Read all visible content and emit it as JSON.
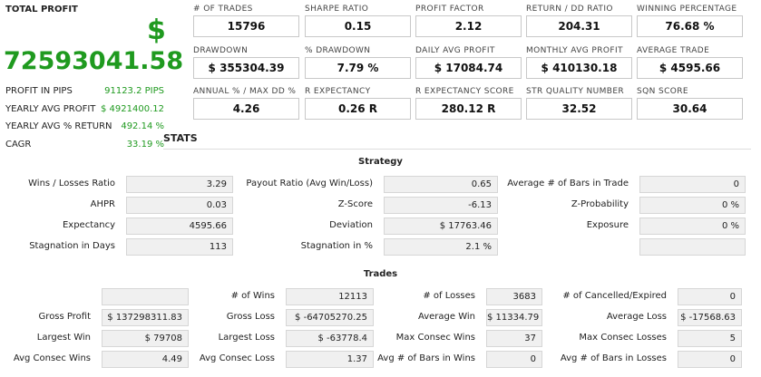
{
  "total_profit": {
    "label": "TOTAL PROFIT",
    "currency_symbol": "$",
    "value": "72593041.58",
    "rows": [
      {
        "label": "PROFIT IN PIPS",
        "value": "91123.2 PIPS"
      },
      {
        "label": "YEARLY AVG PROFIT",
        "value": "$ 4921400.12"
      },
      {
        "label": "YEARLY AVG % RETURN",
        "value": "492.14 %"
      },
      {
        "label": "CAGR",
        "value": "33.19 %"
      }
    ]
  },
  "metrics": [
    {
      "label": "# OF TRADES",
      "value": "15796"
    },
    {
      "label": "SHARPE RATIO",
      "value": "0.15"
    },
    {
      "label": "PROFIT FACTOR",
      "value": "2.12"
    },
    {
      "label": "RETURN / DD RATIO",
      "value": "204.31"
    },
    {
      "label": "WINNING PERCENTAGE",
      "value": "76.68 %"
    },
    {
      "label": "DRAWDOWN",
      "value": "$ 355304.39"
    },
    {
      "label": "% DRAWDOWN",
      "value": "7.79 %"
    },
    {
      "label": "DAILY AVG PROFIT",
      "value": "$ 17084.74"
    },
    {
      "label": "MONTHLY AVG PROFIT",
      "value": "$ 410130.18"
    },
    {
      "label": "AVERAGE TRADE",
      "value": "$ 4595.66"
    },
    {
      "label": "ANNUAL % / MAX DD %",
      "value": "4.26"
    },
    {
      "label": "R EXPECTANCY",
      "value": "0.26 R"
    },
    {
      "label": "R EXPECTANCY SCORE",
      "value": "280.12 R"
    },
    {
      "label": "STR QUALITY NUMBER",
      "value": "32.52"
    },
    {
      "label": "SQN SCORE",
      "value": "30.64"
    }
  ],
  "stats_title": "STATS",
  "strategy": {
    "title": "Strategy",
    "rows": [
      [
        {
          "label": "Wins / Losses Ratio",
          "value": "3.29"
        },
        {
          "label": "Payout Ratio (Avg Win/Loss)",
          "value": "0.65"
        },
        {
          "label": "Average # of Bars in Trade",
          "value": "0"
        }
      ],
      [
        {
          "label": "AHPR",
          "value": "0.03"
        },
        {
          "label": "Z-Score",
          "value": "-6.13"
        },
        {
          "label": "Z-Probability",
          "value": "0 %"
        }
      ],
      [
        {
          "label": "Expectancy",
          "value": "4595.66"
        },
        {
          "label": "Deviation",
          "value": "$ 17763.46"
        },
        {
          "label": "Exposure",
          "value": "0 %"
        }
      ],
      [
        {
          "label": "Stagnation in Days",
          "value": "113"
        },
        {
          "label": "Stagnation in %",
          "value": "2.1 %"
        },
        {
          "label": "",
          "value": ""
        }
      ]
    ]
  },
  "trades": {
    "title": "Trades",
    "rows": [
      [
        {
          "label": "",
          "value": ""
        },
        {
          "label": "# of Wins",
          "value": "12113"
        },
        {
          "label": "# of Losses",
          "value": "3683"
        },
        {
          "label": "# of Cancelled/Expired",
          "value": "0"
        }
      ],
      [
        {
          "label": "Gross Profit",
          "value": "$ 137298311.83"
        },
        {
          "label": "Gross Loss",
          "value": "$ -64705270.25"
        },
        {
          "label": "Average Win",
          "value": "$ 11334.79"
        },
        {
          "label": "Average Loss",
          "value": "$ -17568.63"
        }
      ],
      [
        {
          "label": "Largest Win",
          "value": "$ 79708"
        },
        {
          "label": "Largest Loss",
          "value": "$ -63778.4"
        },
        {
          "label": "Max Consec Wins",
          "value": "37"
        },
        {
          "label": "Max Consec Losses",
          "value": "5"
        }
      ],
      [
        {
          "label": "Avg Consec Wins",
          "value": "4.49"
        },
        {
          "label": "Avg Consec Loss",
          "value": "1.37"
        },
        {
          "label": "Avg # of Bars in Wins",
          "value": "0"
        },
        {
          "label": "Avg # of Bars in Losses",
          "value": "0"
        }
      ]
    ]
  },
  "colors": {
    "profit_green": "#1f9a1f",
    "value_bg": "#f0f0f0"
  }
}
